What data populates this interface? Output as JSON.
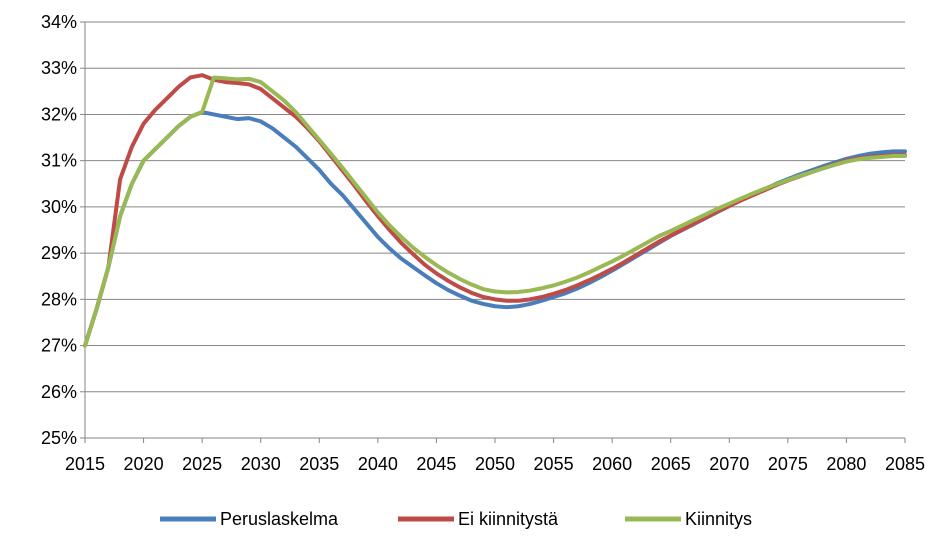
{
  "chart_data": {
    "type": "line",
    "title": "",
    "xlabel": "",
    "ylabel": "",
    "xlim": [
      2015,
      2085
    ],
    "ylim": [
      25,
      34
    ],
    "x_ticks": [
      "2015",
      "2020",
      "2025",
      "2030",
      "2035",
      "2040",
      "2045",
      "2050",
      "2055",
      "2060",
      "2065",
      "2070",
      "2075",
      "2080",
      "2085"
    ],
    "y_ticks": [
      "25%",
      "26%",
      "27%",
      "28%",
      "29%",
      "30%",
      "31%",
      "32%",
      "33%",
      "34%"
    ],
    "y_tick_values": [
      25,
      26,
      27,
      28,
      29,
      30,
      31,
      32,
      33,
      34
    ],
    "x_tick_values": [
      2015,
      2020,
      2025,
      2030,
      2035,
      2040,
      2045,
      2050,
      2055,
      2060,
      2065,
      2070,
      2075,
      2080,
      2085
    ],
    "grid": "horizontal",
    "legend_position": "bottom",
    "x": [
      2015,
      2016,
      2017,
      2018,
      2019,
      2020,
      2021,
      2022,
      2023,
      2024,
      2025,
      2026,
      2027,
      2028,
      2029,
      2030,
      2031,
      2032,
      2033,
      2034,
      2035,
      2036,
      2037,
      2038,
      2039,
      2040,
      2041,
      2042,
      2043,
      2044,
      2045,
      2046,
      2047,
      2048,
      2049,
      2050,
      2051,
      2052,
      2053,
      2054,
      2055,
      2056,
      2057,
      2058,
      2059,
      2060,
      2061,
      2062,
      2063,
      2064,
      2065,
      2066,
      2067,
      2068,
      2069,
      2070,
      2071,
      2072,
      2073,
      2074,
      2075,
      2076,
      2077,
      2078,
      2079,
      2080,
      2081,
      2082,
      2083,
      2084,
      2085
    ],
    "series": [
      {
        "name": "Peruslaskelma",
        "color": "#4a7ebb",
        "values": [
          27.0,
          27.8,
          28.7,
          29.8,
          30.5,
          31.0,
          31.25,
          31.5,
          31.75,
          31.95,
          32.05,
          32.0,
          31.95,
          31.9,
          31.92,
          31.85,
          31.7,
          31.5,
          31.3,
          31.05,
          30.8,
          30.5,
          30.25,
          29.95,
          29.65,
          29.35,
          29.1,
          28.88,
          28.7,
          28.52,
          28.35,
          28.2,
          28.08,
          27.97,
          27.9,
          27.85,
          27.83,
          27.85,
          27.9,
          27.97,
          28.05,
          28.13,
          28.23,
          28.35,
          28.48,
          28.62,
          28.77,
          28.92,
          29.07,
          29.22,
          29.37,
          29.5,
          29.63,
          29.76,
          29.89,
          30.02,
          30.15,
          30.27,
          30.38,
          30.5,
          30.6,
          30.7,
          30.79,
          30.88,
          30.96,
          31.04,
          31.1,
          31.15,
          31.18,
          31.2,
          31.2
        ]
      },
      {
        "name": "Ei kiinnitystä",
        "color": "#be4b48",
        "values": [
          27.0,
          27.8,
          28.7,
          30.6,
          31.3,
          31.8,
          32.1,
          32.35,
          32.6,
          32.8,
          32.85,
          32.75,
          32.7,
          32.68,
          32.65,
          32.55,
          32.35,
          32.15,
          31.95,
          31.7,
          31.42,
          31.1,
          30.78,
          30.46,
          30.12,
          29.8,
          29.5,
          29.22,
          28.98,
          28.75,
          28.56,
          28.4,
          28.26,
          28.14,
          28.05,
          28.0,
          27.97,
          27.97,
          28.0,
          28.05,
          28.12,
          28.2,
          28.3,
          28.41,
          28.53,
          28.66,
          28.8,
          28.95,
          29.1,
          29.25,
          29.38,
          29.51,
          29.64,
          29.77,
          29.9,
          30.02,
          30.14,
          30.25,
          30.36,
          30.47,
          30.57,
          30.66,
          30.75,
          30.84,
          30.92,
          31.0,
          31.05,
          31.08,
          31.1,
          31.12,
          31.12
        ]
      },
      {
        "name": "Kiinnitys",
        "color": "#98b954",
        "values": [
          27.0,
          27.8,
          28.7,
          29.8,
          30.5,
          31.0,
          31.25,
          31.5,
          31.75,
          31.95,
          32.05,
          32.8,
          32.78,
          32.76,
          32.77,
          32.7,
          32.5,
          32.3,
          32.05,
          31.75,
          31.45,
          31.15,
          30.84,
          30.52,
          30.2,
          29.88,
          29.6,
          29.35,
          29.12,
          28.92,
          28.74,
          28.58,
          28.44,
          28.32,
          28.22,
          28.17,
          28.15,
          28.16,
          28.19,
          28.24,
          28.3,
          28.38,
          28.47,
          28.58,
          28.7,
          28.82,
          28.95,
          29.09,
          29.23,
          29.37,
          29.48,
          29.6,
          29.72,
          29.84,
          29.96,
          30.07,
          30.18,
          30.29,
          30.39,
          30.49,
          30.58,
          30.67,
          30.75,
          30.83,
          30.91,
          30.98,
          31.03,
          31.06,
          31.08,
          31.1,
          31.1
        ]
      }
    ]
  }
}
